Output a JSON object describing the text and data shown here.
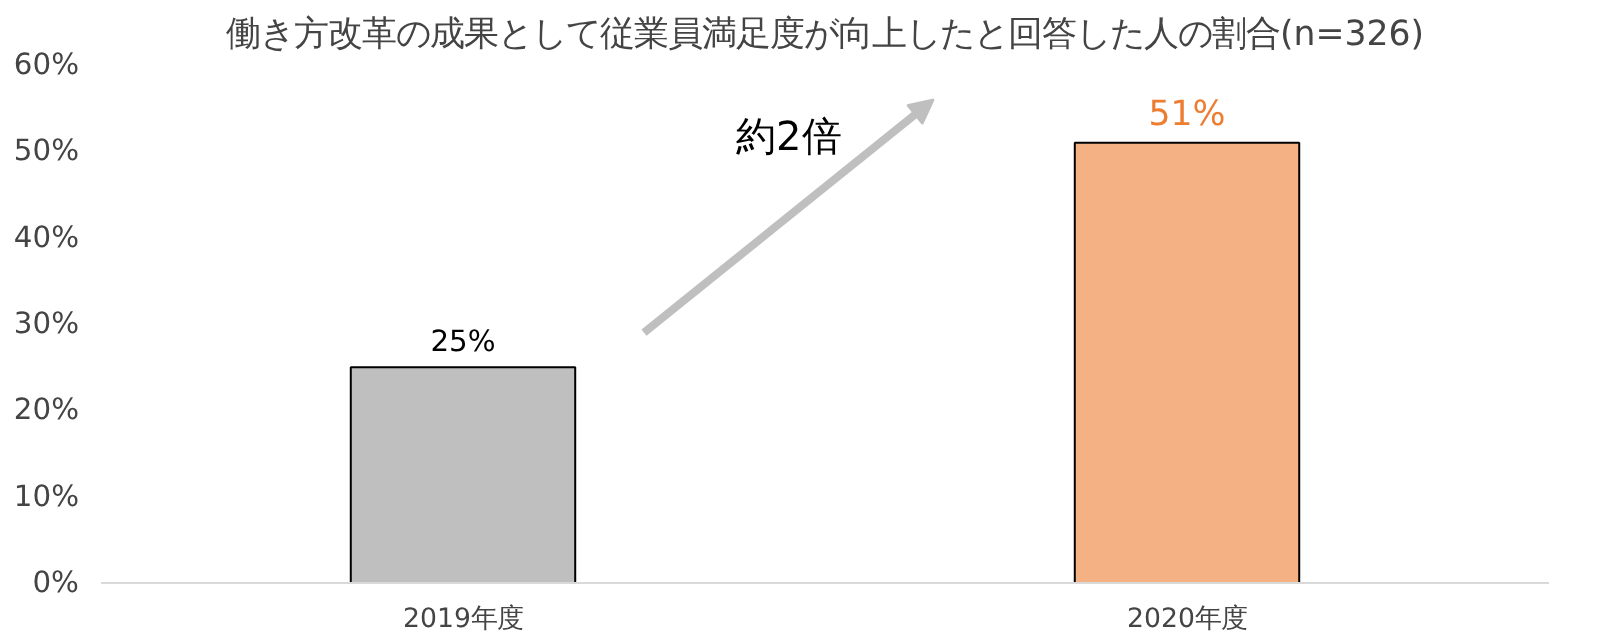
{
  "chart_data": {
    "type": "bar",
    "title": "働き方改革の成果として従業員満足度が向上したと回答した人の割合(n=326)",
    "categories": [
      "2019年度",
      "2020年度"
    ],
    "values": [
      25,
      51
    ],
    "colors": [
      "#bfbfbf",
      "#f4b183"
    ],
    "value_labels": [
      "25%",
      "51%"
    ],
    "ylim": [
      0,
      60
    ],
    "yticks": [
      {
        "value": 0,
        "label": "0%"
      },
      {
        "value": 10,
        "label": "10%"
      },
      {
        "value": 20,
        "label": "20%"
      },
      {
        "value": 30,
        "label": "30%"
      },
      {
        "value": 40,
        "label": "40%"
      },
      {
        "value": 50,
        "label": "50%"
      },
      {
        "value": 60,
        "label": "60%"
      }
    ],
    "grid": false,
    "annotations": [
      "約2倍"
    ]
  }
}
